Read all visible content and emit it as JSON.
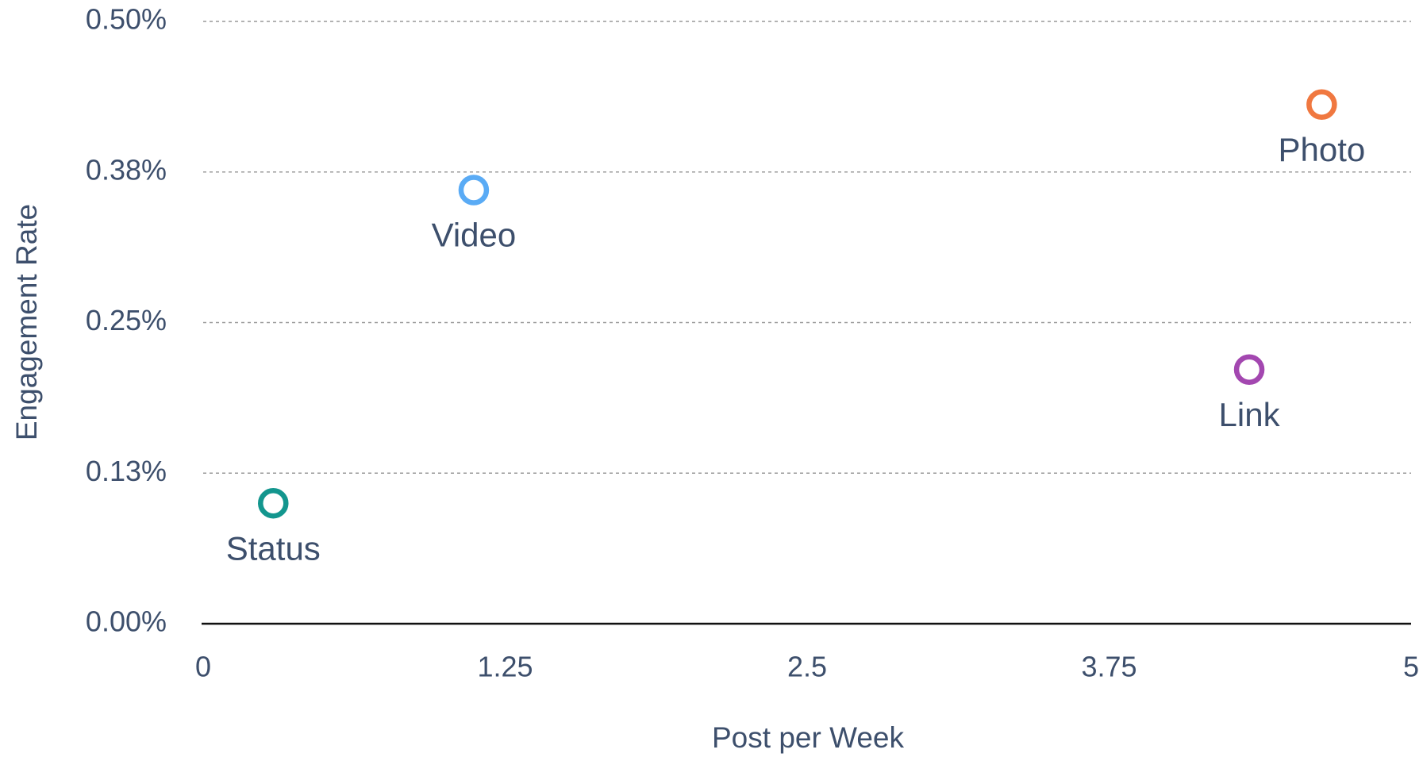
{
  "chart_data": {
    "type": "scatter",
    "x_label": "Post per Week",
    "y_label": "Engagement Rate",
    "xlim": [
      0,
      5
    ],
    "xticks": [
      0,
      1.25,
      2.5,
      3.75,
      5
    ],
    "ylim": [
      0,
      0.5
    ],
    "yticks": [
      {
        "value": 0,
        "label": "0.00%"
      },
      {
        "value": 0.125,
        "label": "0.13%"
      },
      {
        "value": 0.25,
        "label": "0.25%"
      },
      {
        "value": 0.375,
        "label": "0.38%"
      },
      {
        "value": 0.5,
        "label": "0.50%"
      }
    ],
    "grid": true,
    "series": [
      {
        "name": "Status",
        "color": "#13968e",
        "x": [
          0.29
        ],
        "values": [
          0.1
        ]
      },
      {
        "name": "Video",
        "color": "#5aabf5",
        "x": [
          1.12
        ],
        "values": [
          0.36
        ]
      },
      {
        "name": "Link",
        "color": "#a347b0",
        "x": [
          4.33
        ],
        "values": [
          0.211
        ]
      },
      {
        "name": "Photo",
        "color": "#f07840",
        "x": [
          4.63
        ],
        "values": [
          0.431
        ]
      }
    ]
  }
}
